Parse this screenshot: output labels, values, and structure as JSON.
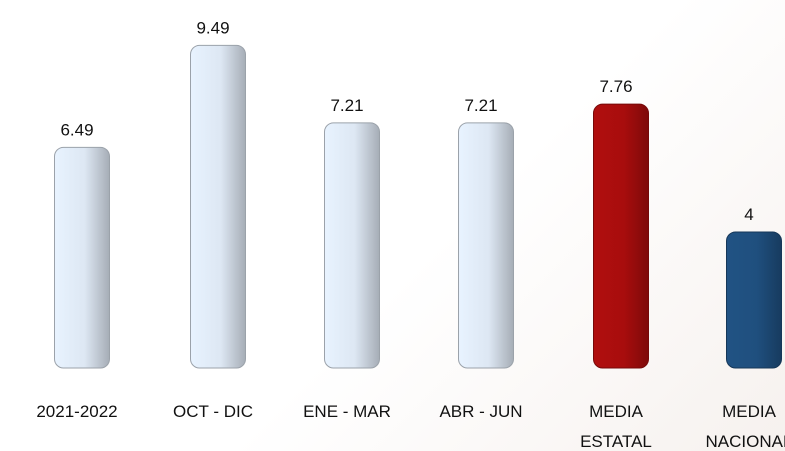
{
  "chart_data": {
    "type": "bar",
    "categories": [
      "2021-2022",
      "OCT - DIC",
      "ENE - MAR",
      "ABR - JUN",
      "MEDIA ESTATAL",
      "MEDIA NACIONAL"
    ],
    "values": [
      6.49,
      9.49,
      7.21,
      7.21,
      7.76,
      4
    ],
    "colors": [
      "#dde7f3",
      "#dde7f3",
      "#dde7f3",
      "#dde7f3",
      "#a80d0d",
      "#1f4f7e"
    ],
    "ylim": [
      0,
      10
    ]
  }
}
